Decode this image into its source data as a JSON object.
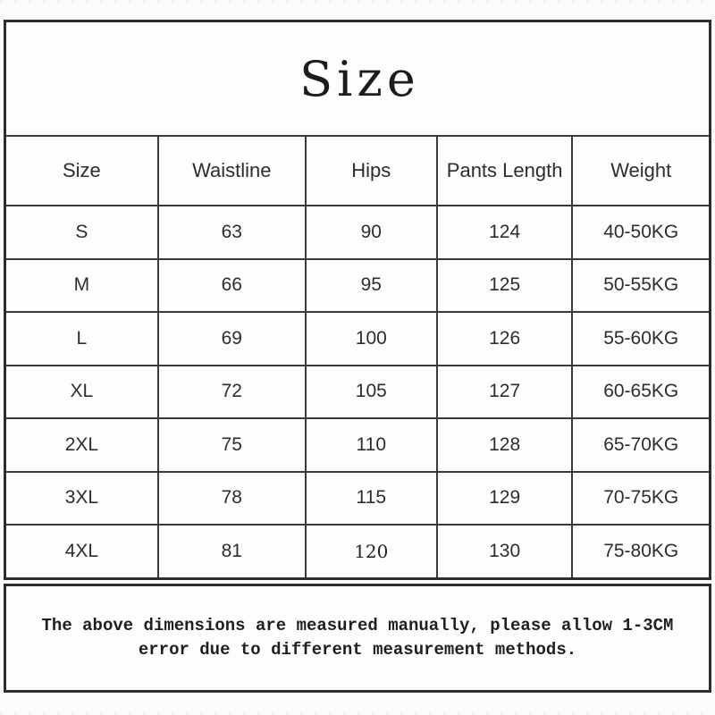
{
  "chart_data": {
    "type": "table",
    "title": "Size",
    "columns": [
      "Size",
      "Waistline",
      "Hips",
      "Pants Length",
      "Weight"
    ],
    "rows": [
      [
        "S",
        63,
        90,
        124,
        "40-50KG"
      ],
      [
        "M",
        66,
        95,
        125,
        "50-55KG"
      ],
      [
        "L",
        69,
        100,
        126,
        "55-60KG"
      ],
      [
        "XL",
        72,
        105,
        127,
        "60-65KG"
      ],
      [
        "2XL",
        75,
        110,
        128,
        "65-70KG"
      ],
      [
        "3XL",
        78,
        115,
        129,
        "70-75KG"
      ],
      [
        "4XL",
        81,
        120,
        130,
        "75-80KG"
      ]
    ],
    "footnote_line1": "The above dimensions are measured manually, please allow 1-3CM",
    "footnote_line2": "error due to different measurement methods.",
    "layout_hints": {
      "grid": "on",
      "header_row": true,
      "serif_styled_cell": {
        "row": 6,
        "col": 2
      }
    }
  },
  "colors": {
    "border": "#2d2d2d",
    "grid": "#3a3a3a",
    "text": "#2d2d2d",
    "background": "#fdfdfd"
  }
}
